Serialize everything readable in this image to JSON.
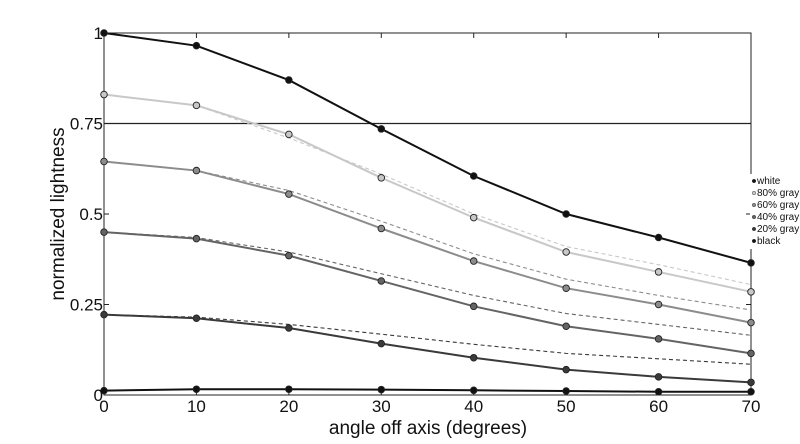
{
  "chart_data": {
    "type": "line",
    "title": "",
    "xlabel": "angle off axis (degrees)",
    "ylabel": "normalized lightness",
    "xlim": [
      0,
      70
    ],
    "ylim": [
      0,
      1
    ],
    "x": [
      0,
      10,
      20,
      30,
      40,
      50,
      60,
      70
    ],
    "x_tick_labels": [
      "0",
      "10",
      "20",
      "30",
      "40",
      "50",
      "60",
      "70"
    ],
    "y_ticks": [
      0,
      0.25,
      0.5,
      0.75,
      1
    ],
    "y_tick_labels": [
      "0",
      "0.25",
      "0.5",
      "0.75",
      "1"
    ],
    "reference_line": 0.75,
    "grid": false,
    "legend_position": "right",
    "series": [
      {
        "name": "white",
        "color": "#111111",
        "values": [
          1.0,
          0.965,
          0.87,
          0.735,
          0.605,
          0.5,
          0.435,
          0.365
        ],
        "dashed": null
      },
      {
        "name": "80% gray",
        "color": "#c8c8c8",
        "values": [
          0.83,
          0.8,
          0.72,
          0.6,
          0.49,
          0.395,
          0.34,
          0.285
        ],
        "dashed": [
          0.83,
          0.8,
          0.71,
          0.61,
          0.5,
          0.41,
          0.36,
          0.305
        ]
      },
      {
        "name": "60% gray",
        "color": "#8c8c8c",
        "values": [
          0.645,
          0.62,
          0.555,
          0.46,
          0.37,
          0.295,
          0.25,
          0.2
        ],
        "dashed": [
          0.645,
          0.62,
          0.565,
          0.48,
          0.39,
          0.32,
          0.275,
          0.235
        ]
      },
      {
        "name": "40% gray",
        "color": "#646464",
        "values": [
          0.45,
          0.432,
          0.385,
          0.315,
          0.245,
          0.19,
          0.155,
          0.115
        ],
        "dashed": [
          0.45,
          0.435,
          0.395,
          0.335,
          0.275,
          0.225,
          0.195,
          0.165
        ]
      },
      {
        "name": "20% gray",
        "color": "#3a3a3a",
        "values": [
          0.222,
          0.212,
          0.185,
          0.142,
          0.103,
          0.07,
          0.05,
          0.035
        ],
        "dashed": [
          0.222,
          0.215,
          0.195,
          0.168,
          0.14,
          0.115,
          0.1,
          0.085
        ]
      },
      {
        "name": "black",
        "color": "#111111",
        "values": [
          0.012,
          0.016,
          0.016,
          0.015,
          0.013,
          0.011,
          0.009,
          0.009
        ],
        "dashed": null
      }
    ]
  }
}
